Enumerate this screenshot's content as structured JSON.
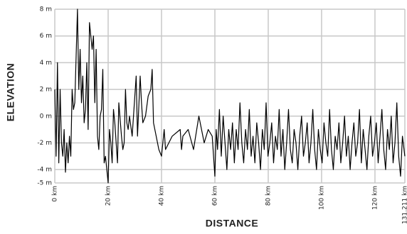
{
  "chart_data": {
    "type": "line",
    "color": "#000000",
    "grid": true,
    "ylabel": "ELEVATION",
    "xlabel": "DISTANCE",
    "xlim": [
      0,
      131.211
    ],
    "ylim": [
      -5,
      8
    ],
    "yticks": [
      {
        "value": 8,
        "label": "8 m"
      },
      {
        "value": 6,
        "label": "6 m"
      },
      {
        "value": 4,
        "label": "4 m"
      },
      {
        "value": 2,
        "label": "2 m"
      },
      {
        "value": 0,
        "label": "0 m"
      },
      {
        "value": -2,
        "label": "-2 m"
      },
      {
        "value": -4,
        "label": "-4 m"
      },
      {
        "value": -5,
        "label": "-5 m"
      }
    ],
    "xticks": [
      {
        "value": 0,
        "label": "0 km"
      },
      {
        "value": 20,
        "label": "20 km"
      },
      {
        "value": 40,
        "label": "40 km"
      },
      {
        "value": 60,
        "label": "60 km"
      },
      {
        "value": 80,
        "label": "80 km"
      },
      {
        "value": 100,
        "label": "100 km"
      },
      {
        "value": 120,
        "label": "120 km"
      },
      {
        "value": 131.211,
        "label": "131.211 km"
      }
    ],
    "x": [
      0,
      0.5,
      1,
      1.5,
      2,
      2.5,
      3,
      3.5,
      4,
      4.5,
      5,
      5.5,
      6,
      6.5,
      7,
      7.5,
      8,
      8.5,
      9,
      9.5,
      10,
      10.5,
      11,
      11.5,
      12,
      12.5,
      13,
      13.5,
      14,
      14.5,
      15,
      15.5,
      16,
      16.5,
      17,
      17.5,
      18,
      18.5,
      19,
      19.5,
      20,
      20.5,
      21,
      21.5,
      22,
      22.5,
      23,
      23.5,
      24,
      25,
      25.5,
      26,
      26.5,
      27,
      27.5,
      28,
      29,
      30,
      30.5,
      31,
      32,
      32.5,
      33,
      34,
      35,
      36,
      36.5,
      37,
      38,
      39,
      40,
      41,
      41.5,
      44,
      47,
      47.5,
      48,
      50,
      52,
      54,
      56,
      57.5,
      59,
      60,
      60.5,
      61,
      61.7,
      62.4,
      63.1,
      63.8,
      64.5,
      65.2,
      65.9,
      66.6,
      67.3,
      68,
      68.7,
      69.4,
      70.1,
      70.8,
      71.5,
      72.2,
      72.9,
      73.6,
      74.3,
      75,
      75.7,
      76.4,
      77.1,
      77.8,
      78.5,
      79.2,
      79.9,
      80.6,
      81.3,
      82,
      82.7,
      83.4,
      84.1,
      84.8,
      85.5,
      86.2,
      86.9,
      87.6,
      88.3,
      89,
      89.7,
      90.4,
      91.1,
      91.8,
      92.5,
      93.2,
      93.9,
      94.6,
      95.3,
      96,
      96.7,
      97.4,
      98.1,
      98.8,
      99.5,
      100.2,
      100.9,
      101.6,
      102.3,
      103,
      103.7,
      104.4,
      105.1,
      105.8,
      106.5,
      107.2,
      107.9,
      108.6,
      109.3,
      110,
      110.7,
      111.4,
      112.1,
      112.8,
      113.5,
      114.2,
      114.9,
      115.6,
      116.3,
      117,
      117.7,
      118.4,
      119.1,
      119.8,
      120.5,
      121.2,
      121.9,
      122.6,
      123.3,
      124,
      124.7,
      125.4,
      126.1,
      126.8,
      127.5,
      128.2,
      128.9,
      129.6,
      130.3,
      131.2
    ],
    "values": [
      2,
      -3,
      4,
      -3.5,
      2,
      -2,
      -3,
      -1,
      -4.2,
      -2,
      -3.5,
      -1.5,
      -3,
      2,
      0.5,
      1,
      4.5,
      8,
      2,
      5,
      1,
      3,
      -0.5,
      0.5,
      4,
      -1,
      7,
      6,
      5,
      6,
      1,
      5,
      -1.5,
      -2.5,
      0,
      0.5,
      3.5,
      -3.5,
      -3,
      -4,
      -5,
      -1,
      -2,
      -3.5,
      0.5,
      -0.5,
      -2,
      -3.5,
      1,
      -1.5,
      -2.5,
      -2,
      2,
      -0.5,
      -1,
      0,
      -1.5,
      1.5,
      3,
      -1.5,
      3,
      1,
      -0.5,
      0,
      1.5,
      2,
      3.5,
      -0.5,
      -1.5,
      -2.5,
      -3,
      -1,
      -2.5,
      -1.5,
      -1,
      -2.5,
      -1.5,
      -1,
      -2.5,
      0,
      -2,
      -1,
      -1.5,
      -4.5,
      -1,
      -2.5,
      0.5,
      -3,
      0,
      -2,
      -4,
      -1,
      -2.5,
      -0.5,
      -3.5,
      -1,
      -2.5,
      1,
      -2,
      -3.5,
      -1,
      -2.5,
      0.5,
      -3,
      -1.5,
      -3.5,
      -0.5,
      -2,
      -4,
      -1,
      -2.5,
      1,
      -3,
      -2,
      -0.5,
      -3.5,
      -1.5,
      -2.5,
      0.5,
      -3,
      -1,
      -4,
      -2,
      0.5,
      -2.5,
      -3.5,
      -1,
      -2,
      -4,
      -1.5,
      0,
      -3,
      -2,
      -0.5,
      -3.5,
      -2,
      0.5,
      -2.5,
      -4,
      -1,
      -2.5,
      -3.5,
      -0.5,
      -2,
      -3,
      0.5,
      -2.5,
      -4,
      -1.5,
      -2.5,
      -0.5,
      -3.5,
      -2,
      0,
      -3,
      -1.5,
      -4,
      -2,
      -0.5,
      -3,
      -2,
      0.5,
      -3.5,
      -1,
      -2.5,
      -4,
      -1.5,
      0,
      -3,
      -2,
      -0.5,
      -3.5,
      -1.5,
      0.5,
      -2.5,
      -4,
      -1,
      -2.5,
      0,
      -3.5,
      -2,
      1,
      -3,
      -4.5,
      -1.5,
      -3
    ]
  }
}
